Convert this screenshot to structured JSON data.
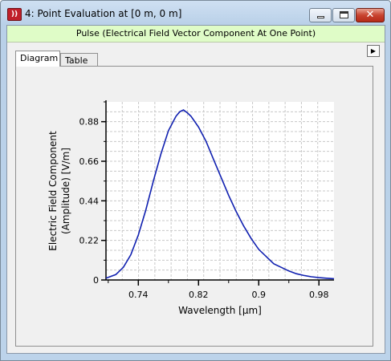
{
  "window": {
    "title": "4: Point Evaluation at [0 m, 0 m]",
    "icon": "app-logo-icon",
    "controls": [
      "minimize-icon",
      "maximize-icon",
      "close-icon"
    ]
  },
  "header": {
    "text": "Pulse (Electrical Field Vector Component At One Point)",
    "background": "#dffcc7"
  },
  "tabs": [
    {
      "label": "Diagram",
      "active": true
    },
    {
      "label": "Table",
      "active": false
    }
  ],
  "menu_arrow": "right-arrow-icon",
  "chart_data": {
    "type": "line",
    "xlabel": "Wavelength [µm]",
    "ylabel_line1": "Electric Field Component",
    "ylabel_line2": "(Amplitude) [V/m]",
    "xlim": [
      0.697,
      1.0
    ],
    "ylim": [
      0,
      0.99
    ],
    "x_ticks": [
      0.74,
      0.82,
      0.9,
      0.98
    ],
    "x_tick_labels": [
      "0.74",
      "0.82",
      "0.9",
      "0.98"
    ],
    "y_ticks": [
      0,
      0.22,
      0.44,
      0.66,
      0.88
    ],
    "y_tick_labels": [
      "0",
      "0.22",
      "0.44",
      "0.66",
      "0.88"
    ],
    "grid": true,
    "line_color": "#1020b0",
    "series": [
      {
        "x": [
          0.697,
          0.71,
          0.72,
          0.73,
          0.74,
          0.75,
          0.76,
          0.77,
          0.78,
          0.79,
          0.795,
          0.8,
          0.805,
          0.81,
          0.82,
          0.83,
          0.84,
          0.85,
          0.86,
          0.87,
          0.88,
          0.89,
          0.9,
          0.91,
          0.92,
          0.93,
          0.94,
          0.95,
          0.96,
          0.97,
          0.98,
          0.99,
          1.0
        ],
        "y": [
          0.01,
          0.03,
          0.07,
          0.14,
          0.25,
          0.39,
          0.55,
          0.7,
          0.83,
          0.91,
          0.935,
          0.945,
          0.93,
          0.91,
          0.85,
          0.77,
          0.67,
          0.57,
          0.47,
          0.38,
          0.3,
          0.23,
          0.17,
          0.13,
          0.09,
          0.07,
          0.05,
          0.035,
          0.025,
          0.018,
          0.013,
          0.01,
          0.007
        ]
      }
    ]
  }
}
